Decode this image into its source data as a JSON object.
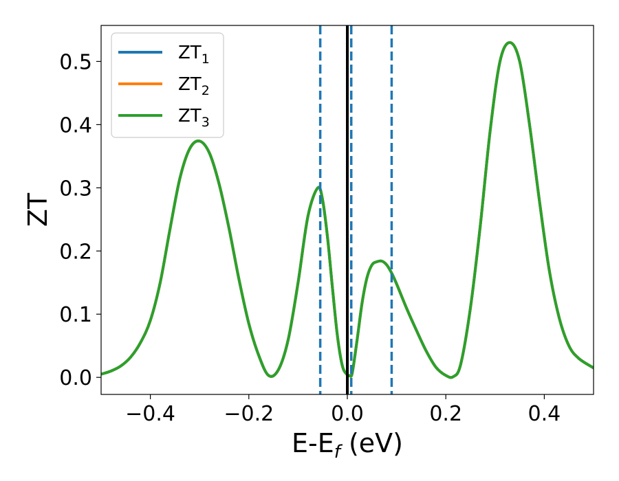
{
  "chart_data": {
    "type": "line",
    "title": "",
    "xlabel": "E-E",
    "xlabel_sub": "f",
    "xlabel_unit": " (eV)",
    "ylabel": "ZT",
    "xlim": [
      -0.5,
      0.5
    ],
    "ylim": [
      -0.027,
      0.557
    ],
    "x_ticks": [
      -0.4,
      -0.2,
      0.0,
      0.2,
      0.4
    ],
    "x_tick_labels": [
      "−0.4",
      "−0.2",
      "0.0",
      "0.2",
      "0.4"
    ],
    "y_ticks": [
      0.0,
      0.1,
      0.2,
      0.3,
      0.4,
      0.5
    ],
    "y_tick_labels": [
      "0.0",
      "0.1",
      "0.2",
      "0.3",
      "0.4",
      "0.5"
    ],
    "grid": false,
    "legend_position": "top-left",
    "series": [
      {
        "name": "ZT",
        "name_sub": "1",
        "color": "#1f77b4",
        "x": [
          -0.5,
          -0.48,
          -0.46,
          -0.44,
          -0.42,
          -0.4,
          -0.38,
          -0.36,
          -0.34,
          -0.32,
          -0.3,
          -0.28,
          -0.26,
          -0.24,
          -0.22,
          -0.2,
          -0.18,
          -0.16,
          -0.14,
          -0.12,
          -0.1,
          -0.08,
          -0.06,
          -0.05,
          -0.04,
          -0.03,
          -0.02,
          -0.01,
          0.0,
          0.005,
          0.01,
          0.02,
          0.03,
          0.04,
          0.05,
          0.06,
          0.07,
          0.08,
          0.09,
          0.1,
          0.12,
          0.14,
          0.16,
          0.18,
          0.2,
          0.215,
          0.23,
          0.25,
          0.27,
          0.29,
          0.31,
          0.33,
          0.35,
          0.37,
          0.39,
          0.41,
          0.43,
          0.45,
          0.47,
          0.5
        ],
        "y": [
          0.005,
          0.01,
          0.018,
          0.032,
          0.055,
          0.09,
          0.15,
          0.235,
          0.315,
          0.362,
          0.374,
          0.355,
          0.305,
          0.235,
          0.155,
          0.085,
          0.035,
          0.003,
          0.012,
          0.06,
          0.15,
          0.255,
          0.3,
          0.28,
          0.22,
          0.14,
          0.065,
          0.018,
          0.004,
          0.003,
          0.007,
          0.06,
          0.118,
          0.158,
          0.178,
          0.183,
          0.184,
          0.178,
          0.165,
          0.148,
          0.11,
          0.075,
          0.042,
          0.016,
          0.003,
          0.001,
          0.02,
          0.11,
          0.24,
          0.39,
          0.5,
          0.53,
          0.5,
          0.4,
          0.28,
          0.17,
          0.095,
          0.05,
          0.03,
          0.015
        ]
      },
      {
        "name": "ZT",
        "name_sub": "2",
        "color": "#ff7f0e",
        "x": [
          -0.5,
          -0.48,
          -0.46,
          -0.44,
          -0.42,
          -0.4,
          -0.38,
          -0.36,
          -0.34,
          -0.32,
          -0.3,
          -0.28,
          -0.26,
          -0.24,
          -0.22,
          -0.2,
          -0.18,
          -0.16,
          -0.14,
          -0.12,
          -0.1,
          -0.08,
          -0.06,
          -0.05,
          -0.04,
          -0.03,
          -0.02,
          -0.01,
          0.0,
          0.005,
          0.01,
          0.02,
          0.03,
          0.04,
          0.05,
          0.06,
          0.07,
          0.08,
          0.09,
          0.1,
          0.12,
          0.14,
          0.16,
          0.18,
          0.2,
          0.215,
          0.23,
          0.25,
          0.27,
          0.29,
          0.31,
          0.33,
          0.35,
          0.37,
          0.39,
          0.41,
          0.43,
          0.45,
          0.47,
          0.5
        ],
        "y": [
          0.005,
          0.01,
          0.018,
          0.032,
          0.055,
          0.09,
          0.15,
          0.235,
          0.315,
          0.362,
          0.374,
          0.355,
          0.305,
          0.235,
          0.155,
          0.085,
          0.035,
          0.003,
          0.012,
          0.06,
          0.15,
          0.255,
          0.3,
          0.28,
          0.22,
          0.14,
          0.065,
          0.018,
          0.004,
          0.003,
          0.007,
          0.06,
          0.118,
          0.158,
          0.178,
          0.183,
          0.184,
          0.178,
          0.165,
          0.148,
          0.11,
          0.075,
          0.042,
          0.016,
          0.003,
          0.001,
          0.02,
          0.11,
          0.24,
          0.39,
          0.5,
          0.53,
          0.5,
          0.4,
          0.28,
          0.17,
          0.095,
          0.05,
          0.03,
          0.015
        ]
      },
      {
        "name": "ZT",
        "name_sub": "3",
        "color": "#2ca02c",
        "x": [
          -0.5,
          -0.48,
          -0.46,
          -0.44,
          -0.42,
          -0.4,
          -0.38,
          -0.36,
          -0.34,
          -0.32,
          -0.3,
          -0.28,
          -0.26,
          -0.24,
          -0.22,
          -0.2,
          -0.18,
          -0.16,
          -0.14,
          -0.12,
          -0.1,
          -0.08,
          -0.06,
          -0.05,
          -0.04,
          -0.03,
          -0.02,
          -0.01,
          0.0,
          0.005,
          0.01,
          0.02,
          0.03,
          0.04,
          0.05,
          0.06,
          0.07,
          0.08,
          0.09,
          0.1,
          0.12,
          0.14,
          0.16,
          0.18,
          0.2,
          0.215,
          0.23,
          0.25,
          0.27,
          0.29,
          0.31,
          0.33,
          0.35,
          0.37,
          0.39,
          0.41,
          0.43,
          0.45,
          0.47,
          0.5
        ],
        "y": [
          0.005,
          0.01,
          0.018,
          0.032,
          0.055,
          0.09,
          0.15,
          0.235,
          0.315,
          0.362,
          0.374,
          0.355,
          0.305,
          0.235,
          0.155,
          0.085,
          0.035,
          0.003,
          0.012,
          0.06,
          0.15,
          0.255,
          0.3,
          0.28,
          0.22,
          0.14,
          0.065,
          0.018,
          0.004,
          0.003,
          0.007,
          0.06,
          0.118,
          0.158,
          0.178,
          0.183,
          0.184,
          0.178,
          0.165,
          0.148,
          0.11,
          0.075,
          0.042,
          0.016,
          0.003,
          0.001,
          0.02,
          0.11,
          0.24,
          0.39,
          0.5,
          0.53,
          0.5,
          0.4,
          0.28,
          0.17,
          0.095,
          0.05,
          0.03,
          0.015
        ]
      }
    ],
    "vertical_lines": [
      {
        "x": -0.055,
        "style": "dashed",
        "color": "#1f77b4"
      },
      {
        "x": 0.0,
        "style": "solid",
        "color": "#000000"
      },
      {
        "x": 0.008,
        "style": "dashed",
        "color": "#1f77b4"
      },
      {
        "x": 0.09,
        "style": "dashed",
        "color": "#1f77b4"
      }
    ]
  }
}
